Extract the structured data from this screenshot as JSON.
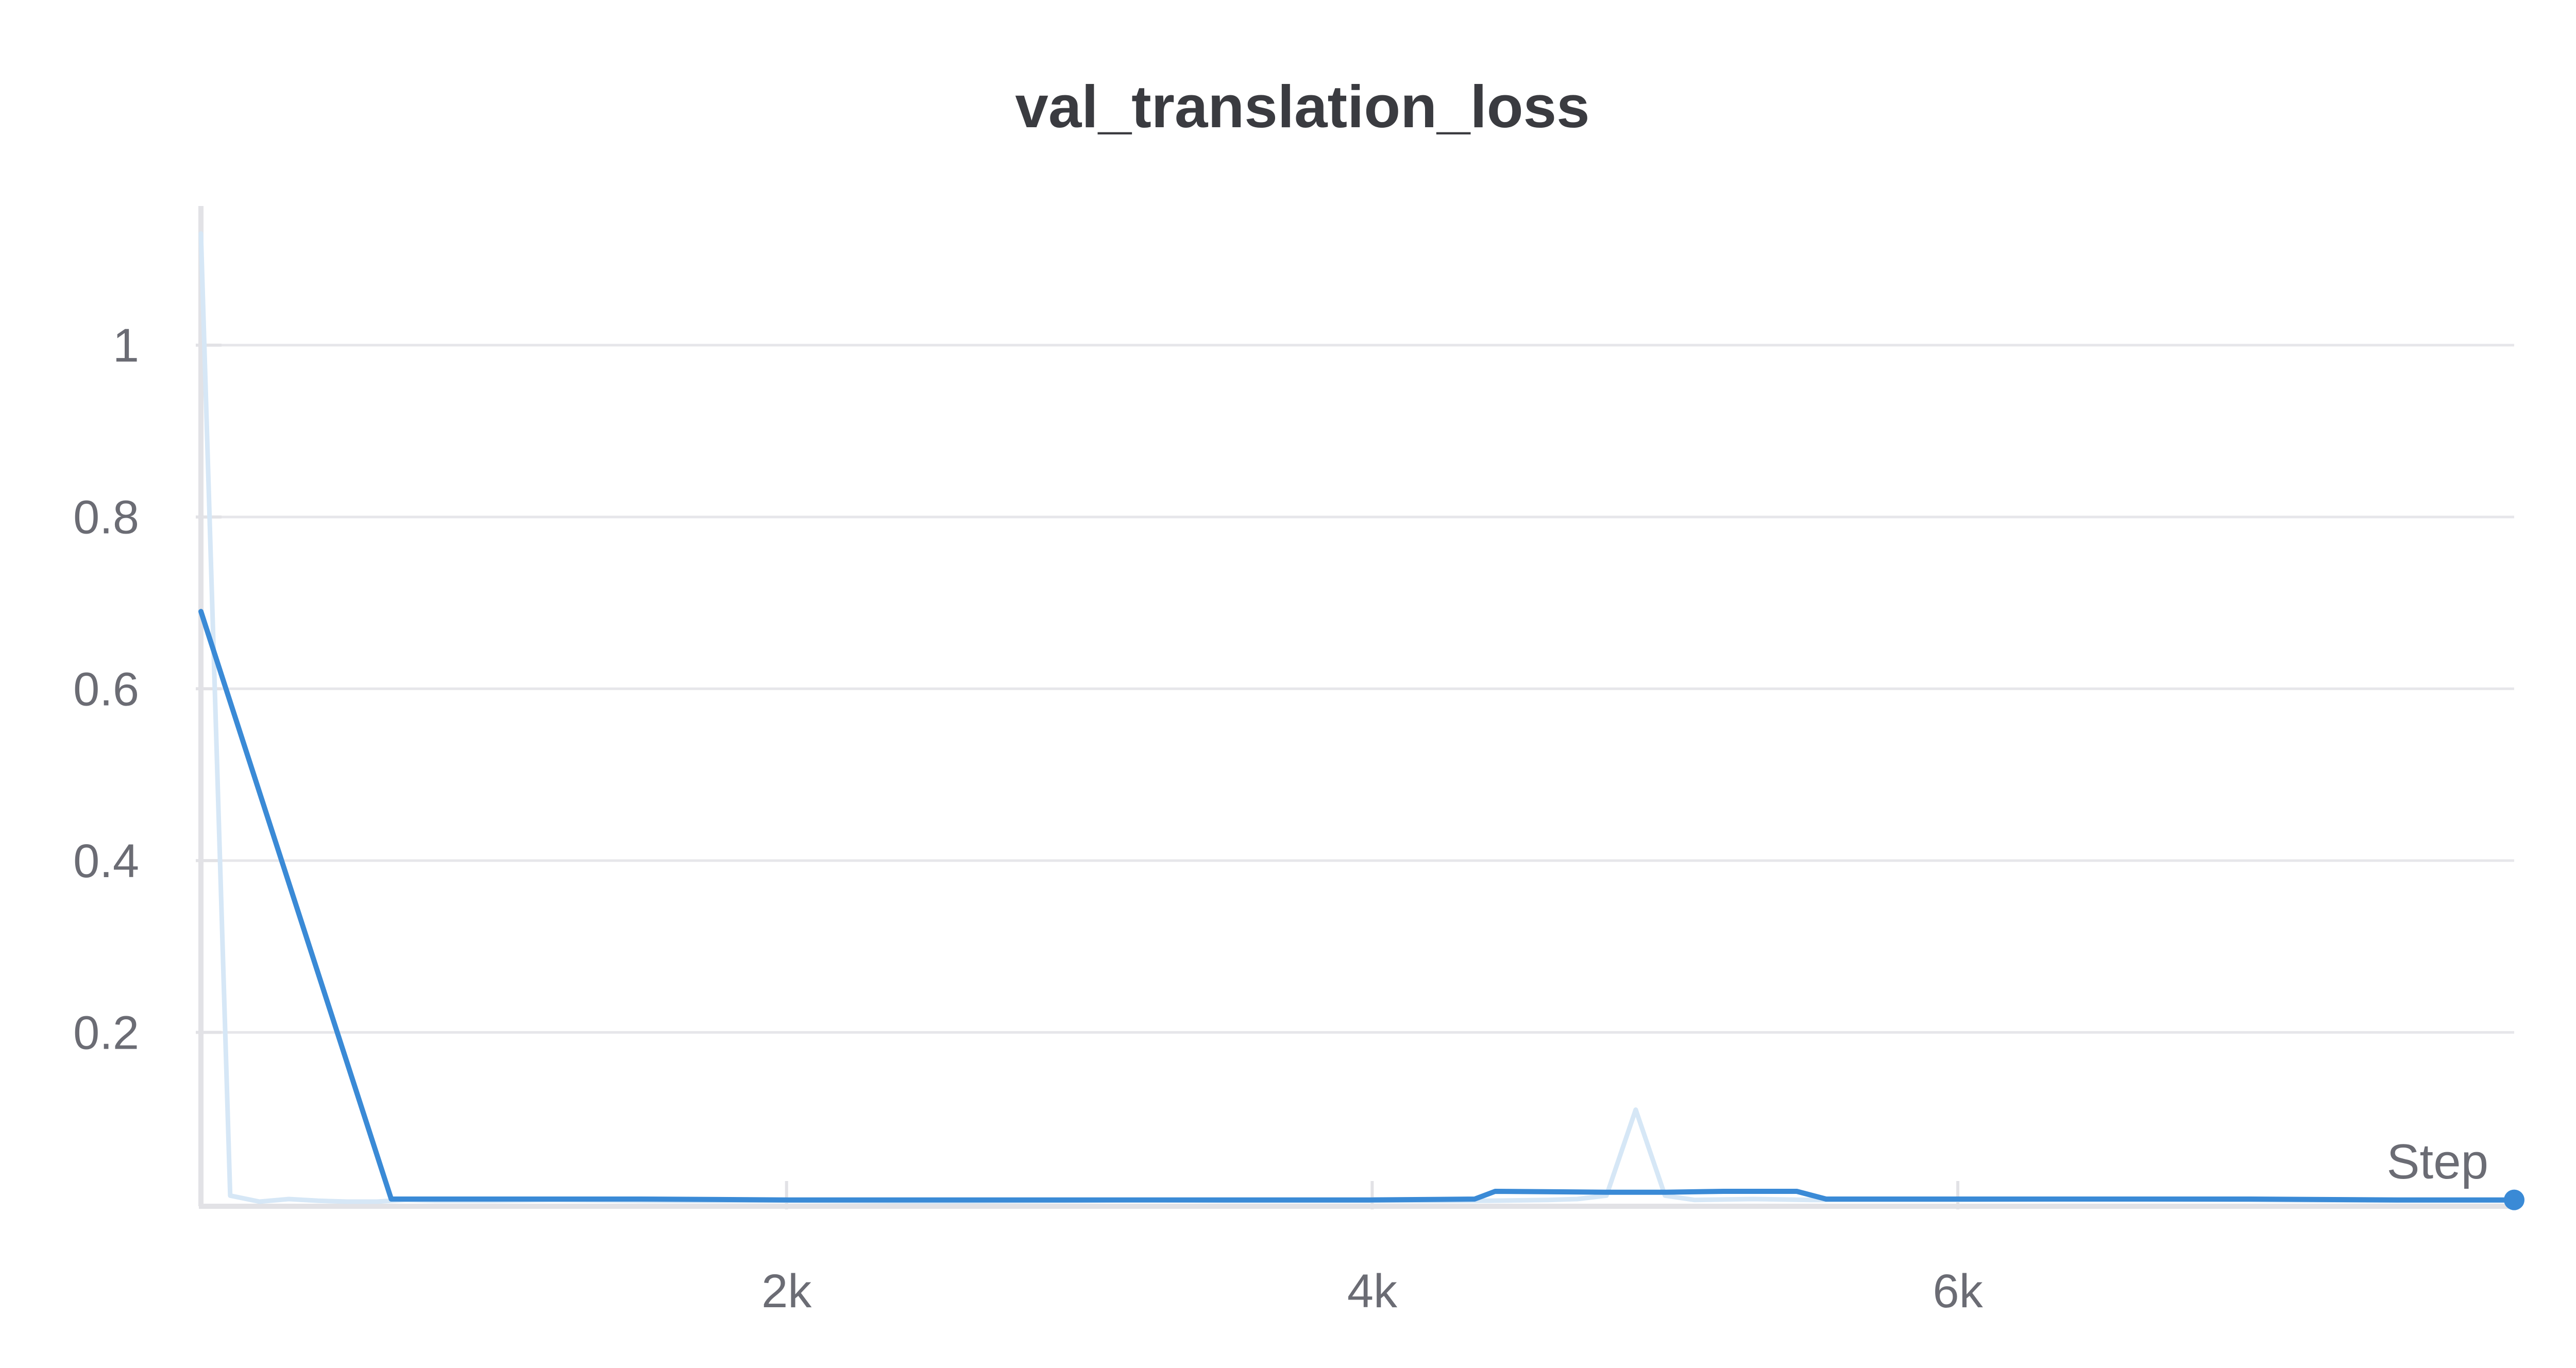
{
  "chart_data": {
    "type": "line",
    "title": "val_translation_loss",
    "xlabel": "Step",
    "ylabel": "",
    "xlim": [
      0,
      7900
    ],
    "ylim": [
      0,
      1.15
    ],
    "grid": true,
    "x_ticks": [
      {
        "value": 2000,
        "label": "2k"
      },
      {
        "value": 4000,
        "label": "4k"
      },
      {
        "value": 6000,
        "label": "6k"
      }
    ],
    "y_ticks": [
      {
        "value": 0.2,
        "label": "0.2"
      },
      {
        "value": 0.4,
        "label": "0.4"
      },
      {
        "value": 0.6,
        "label": "0.6"
      },
      {
        "value": 0.8,
        "label": "0.8"
      },
      {
        "value": 1,
        "label": "1"
      }
    ],
    "series": [
      {
        "role": "raw",
        "color": "#d6e7f6",
        "x": [
          0,
          100,
          200,
          300,
          400,
          500,
          600,
          700,
          800,
          1000,
          1200,
          1500,
          2000,
          2500,
          3000,
          3200,
          3500,
          4000,
          4400,
          4600,
          4700,
          4800,
          4900,
          5000,
          5100,
          5300,
          5500,
          6000,
          6500,
          7000,
          7500,
          7900
        ],
        "y": [
          1.13,
          0.01,
          0.003,
          0.006,
          0.004,
          0.003,
          0.003,
          0.005,
          0.004,
          0.004,
          0.005,
          0.004,
          0.004,
          0.003,
          0.004,
          0.005,
          0.004,
          0.004,
          0.004,
          0.005,
          0.006,
          0.01,
          0.11,
          0.01,
          0.005,
          0.006,
          0.005,
          0.005,
          0.006,
          0.005,
          0.004,
          0.004
        ]
      },
      {
        "role": "smoothed",
        "color": "#3a8ad6",
        "x": [
          0,
          650,
          1000,
          1500,
          2000,
          2500,
          3000,
          3500,
          4000,
          4350,
          4420,
          4800,
          5000,
          5200,
          5450,
          5550,
          6000,
          6500,
          7000,
          7500,
          7900
        ],
        "y": [
          0.69,
          0.006,
          0.006,
          0.006,
          0.005,
          0.005,
          0.005,
          0.005,
          0.005,
          0.006,
          0.015,
          0.014,
          0.014,
          0.015,
          0.015,
          0.006,
          0.006,
          0.006,
          0.006,
          0.005,
          0.005
        ]
      }
    ]
  }
}
